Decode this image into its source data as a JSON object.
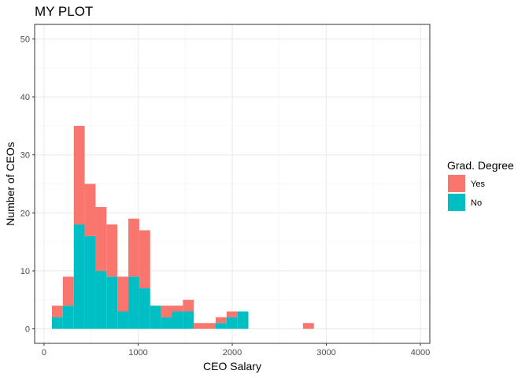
{
  "chart_data": {
    "type": "bar",
    "stacked": true,
    "title": "MY PLOT",
    "xlabel": "CEO Salary",
    "ylabel": "Number of CEOs",
    "xlim": [
      -100,
      4100
    ],
    "ylim": [
      -2.5,
      52.5
    ],
    "x_ticks": [
      0,
      1000,
      2000,
      3000,
      4000
    ],
    "y_ticks": [
      0,
      10,
      20,
      30,
      40,
      50
    ],
    "bin_width": 116,
    "bin_centers": [
      142,
      258,
      374,
      490,
      606,
      722,
      838,
      954,
      1070,
      1186,
      1302,
      1418,
      1534,
      1650,
      1766,
      1882,
      1998,
      2114,
      2230,
      2346,
      2462,
      2578,
      2694,
      2810
    ],
    "series": [
      {
        "name": "Yes",
        "color": "#f8766d",
        "values": [
          2,
          5,
          17,
          9,
          11,
          9,
          6,
          10,
          10,
          0,
          2,
          1,
          2,
          1,
          1,
          1,
          1,
          0,
          0,
          0,
          0,
          0,
          0,
          1
        ]
      },
      {
        "name": "No",
        "color": "#00bfc4",
        "values": [
          2,
          4,
          18,
          16,
          10,
          9,
          3,
          9,
          7,
          4,
          2,
          3,
          3,
          0,
          0,
          1,
          2,
          3,
          0,
          0,
          0,
          0,
          0,
          0
        ]
      }
    ],
    "legend": {
      "title": "Grad. Degree",
      "position": "right",
      "entries": [
        "Yes",
        "No"
      ]
    },
    "grid": true,
    "theme": "bw"
  }
}
